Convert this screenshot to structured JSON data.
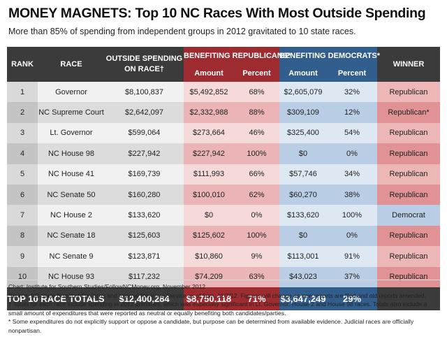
{
  "title": "MONEY MAGNETS: Top 10 NC Races With Most Outside Spending",
  "subtitle": "More than 85% of spending from independent groups in 2012 gravitated to 10 state races.",
  "colors": {
    "header_dark": "#3b3b3b",
    "republican": "#9e2b30",
    "democrat": "#315e8c"
  },
  "headers": {
    "rank": "RANK",
    "race": "RACE",
    "outside_line1": "OUTSIDE SPENDING",
    "outside_line2": "ON RACE†",
    "rep_group": "BENEFITING REPUBLICANS*",
    "dem_group": "BENEFITING DEMOCRATS*",
    "amount": "Amount",
    "percent": "Percent",
    "winner": "WINNER"
  },
  "chart_data": {
    "type": "table",
    "title": "MONEY MAGNETS: Top 10 NC Races With Most Outside Spending",
    "subtitle": "More than 85% of spending from independent groups in 2012 gravitated to 10 state races.",
    "columns": [
      "Rank",
      "Race",
      "Outside Spending on Race†",
      "Benefiting Republicans* Amount",
      "Benefiting Republicans* Percent",
      "Benefiting Democrats* Amount",
      "Benefiting Democrats* Percent",
      "Winner"
    ],
    "rows": [
      {
        "rank": "1",
        "race": "Governor",
        "outside": "$8,100,837",
        "rep_amount": "$5,492,852",
        "rep_pct": "68%",
        "dem_amount": "$2,605,079",
        "dem_pct": "32%",
        "winner": "Republican"
      },
      {
        "rank": "2",
        "race": "NC Supreme Court",
        "outside": "$2,642,097",
        "rep_amount": "$2,332,988",
        "rep_pct": "88%",
        "dem_amount": "$309,109",
        "dem_pct": "12%",
        "winner": "Republican*"
      },
      {
        "rank": "3",
        "race": "Lt. Governor",
        "outside": "$599,064",
        "rep_amount": "$273,664",
        "rep_pct": "46%",
        "dem_amount": "$325,400",
        "dem_pct": "54%",
        "winner": "Republican"
      },
      {
        "rank": "4",
        "race": "NC House 98",
        "outside": "$227,942",
        "rep_amount": "$227,942",
        "rep_pct": "100%",
        "dem_amount": "$0",
        "dem_pct": "0%",
        "winner": "Republican"
      },
      {
        "rank": "5",
        "race": "NC House 41",
        "outside": "$169,739",
        "rep_amount": "$111,993",
        "rep_pct": "66%",
        "dem_amount": "$57,746",
        "dem_pct": "34%",
        "winner": "Republican"
      },
      {
        "rank": "6",
        "race": "NC Senate 50",
        "outside": "$160,280",
        "rep_amount": "$100,010",
        "rep_pct": "62%",
        "dem_amount": "$60,270",
        "dem_pct": "38%",
        "winner": "Republican"
      },
      {
        "rank": "7",
        "race": "NC House 2",
        "outside": "$133,620",
        "rep_amount": "$0",
        "rep_pct": "0%",
        "dem_amount": "$133,620",
        "dem_pct": "100%",
        "winner": "Democrat"
      },
      {
        "rank": "8",
        "race": "NC Senate 18",
        "outside": "$125,603",
        "rep_amount": "$125,602",
        "rep_pct": "100%",
        "dem_amount": "$0",
        "dem_pct": "0%",
        "winner": "Republican"
      },
      {
        "rank": "9",
        "race": "NC Senate 9",
        "outside": "$123,871",
        "rep_amount": "$10,860",
        "rep_pct": "9%",
        "dem_amount": "$113,001",
        "dem_pct": "91%",
        "winner": "Republican"
      },
      {
        "rank": "10",
        "race": "NC House 93",
        "outside": "$117,232",
        "rep_amount": "$74,209",
        "rep_pct": "63%",
        "dem_amount": "$43,023",
        "dem_pct": "37%",
        "winner": "Republican"
      }
    ],
    "totals": {
      "label": "TOP 10 RACE TOTALS",
      "outside": "$12,400,284",
      "rep_amount": "$8,750,118",
      "rep_pct": "71%",
      "dem_amount": "$3,647,249",
      "dem_pct": "29%",
      "winner": ""
    }
  },
  "notes": [
    "Chart: Institute for Southern Studies/FollowNCMoney.org, November 2012",
    "Source: NC State Board of Elections and Internal Revenue Service as of 5pm, 11/7/12. Figures will change as new reports are filed and old reports amended.",
    "† Totals for each race include spending in 2012 primaries, which was especially significant in Lt. Governor, House 2 and House 98 races. Totals also include a small amount of expenditures that were reported as neutral or equally benefiting both candidates/parties.",
    "* Some expenditures do not explicitly support or oppose a candidate, but purpose can be determined from available evidence. Judicial races are officially nonpartisan."
  ]
}
